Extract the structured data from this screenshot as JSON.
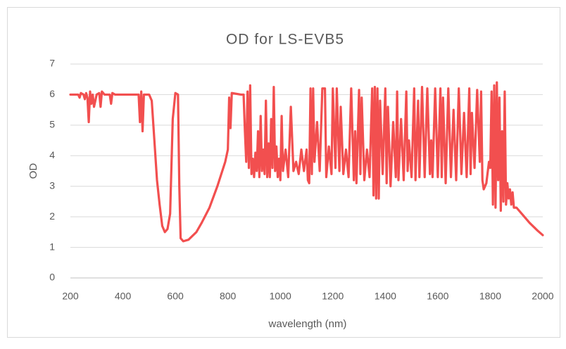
{
  "chart_data": {
    "type": "line",
    "title": "OD for LS-EVB5",
    "x_label": "wavelength (nm)",
    "y_label": "OD",
    "color": "#f24f4f",
    "grid": true,
    "xlim": [
      200,
      2000
    ],
    "xticks": [
      200,
      400,
      600,
      800,
      1000,
      1200,
      1400,
      1600,
      1800,
      2000
    ],
    "ylim": [
      0,
      7
    ],
    "yticks": [
      0,
      1,
      2,
      3,
      4,
      5,
      6,
      7
    ],
    "x": [
      200,
      230,
      235,
      240,
      250,
      255,
      260,
      265,
      270,
      275,
      280,
      285,
      290,
      300,
      310,
      315,
      320,
      330,
      350,
      355,
      360,
      370,
      460,
      465,
      470,
      475,
      480,
      500,
      510,
      520,
      530,
      540,
      550,
      560,
      570,
      580,
      590,
      600,
      610,
      615,
      620,
      630,
      650,
      680,
      700,
      730,
      760,
      790,
      800,
      805,
      810,
      815,
      850,
      860,
      865,
      870,
      875,
      880,
      885,
      890,
      895,
      900,
      905,
      910,
      915,
      920,
      925,
      930,
      935,
      940,
      945,
      950,
      955,
      960,
      965,
      970,
      975,
      980,
      985,
      990,
      995,
      1000,
      1005,
      1010,
      1020,
      1030,
      1040,
      1050,
      1060,
      1070,
      1080,
      1090,
      1100,
      1105,
      1110,
      1115,
      1120,
      1125,
      1130,
      1140,
      1150,
      1160,
      1170,
      1175,
      1185,
      1195,
      1200,
      1210,
      1215,
      1225,
      1230,
      1240,
      1250,
      1260,
      1270,
      1280,
      1285,
      1290,
      1300,
      1305,
      1310,
      1320,
      1330,
      1340,
      1350,
      1355,
      1360,
      1365,
      1370,
      1375,
      1380,
      1390,
      1400,
      1405,
      1410,
      1420,
      1430,
      1440,
      1445,
      1450,
      1460,
      1470,
      1480,
      1485,
      1490,
      1500,
      1510,
      1515,
      1525,
      1530,
      1540,
      1550,
      1560,
      1570,
      1575,
      1580,
      1590,
      1600,
      1610,
      1615,
      1620,
      1630,
      1640,
      1650,
      1660,
      1670,
      1680,
      1690,
      1700,
      1710,
      1720,
      1725,
      1730,
      1740,
      1750,
      1760,
      1765,
      1770,
      1775,
      1785,
      1795,
      1800,
      1805,
      1810,
      1815,
      1820,
      1825,
      1830,
      1835,
      1840,
      1845,
      1850,
      1855,
      1860,
      1865,
      1870,
      1875,
      1880,
      1885,
      1890,
      1900,
      1920,
      1950,
      1980,
      2000
    ],
    "values": [
      6,
      6,
      5.9,
      6.05,
      6,
      5.85,
      6.05,
      5.9,
      5.1,
      6.1,
      5.7,
      6,
      5.6,
      6,
      6.05,
      5.6,
      6.1,
      6,
      6,
      5.7,
      6.05,
      6,
      6,
      5.1,
      6.1,
      4.8,
      6,
      6,
      5.8,
      4.5,
      3.2,
      2.4,
      1.7,
      1.5,
      1.6,
      2.1,
      5.2,
      6.05,
      6,
      3,
      1.3,
      1.2,
      1.25,
      1.5,
      1.8,
      2.3,
      3,
      3.8,
      4.2,
      5.9,
      4.9,
      6.05,
      6,
      6,
      4.8,
      3.8,
      6.1,
      3.6,
      6.3,
      3.4,
      3.9,
      3.3,
      4.1,
      3.5,
      4.8,
      3.3,
      5.3,
      3.5,
      4.2,
      3.4,
      5.8,
      3.3,
      4.4,
      3.3,
      5.2,
      3.6,
      6.25,
      3.5,
      4.3,
      3.3,
      3.9,
      3.2,
      5.3,
      3.5,
      4.2,
      3.3,
      5.6,
      3.5,
      3.8,
      3.4,
      4.2,
      3.5,
      4.2,
      3.2,
      3.1,
      6.2,
      3.4,
      6.2,
      3.8,
      5.1,
      3.5,
      6.2,
      6.2,
      3.3,
      4.3,
      3.4,
      6.2,
      3.6,
      6.2,
      3.5,
      5.6,
      3.4,
      4.2,
      3.3,
      6.2,
      3.2,
      4.8,
      3.1,
      6.15,
      3.4,
      5.9,
      3.2,
      4.2,
      3.3,
      6.2,
      2.7,
      6.25,
      2.6,
      6.2,
      2.6,
      5.8,
      3.4,
      6.2,
      3.1,
      5.6,
      3,
      5.1,
      3.3,
      6.1,
      3.2,
      5.2,
      3.2,
      6.1,
      3.5,
      4.5,
      3.3,
      6.2,
      3.2,
      5.8,
      3.3,
      6.25,
      3.3,
      6.2,
      3.4,
      4.5,
      3.3,
      6.2,
      3.3,
      6.2,
      3.3,
      5.9,
      3.1,
      6.2,
      3.3,
      5.5,
      3.2,
      6.2,
      3.4,
      5.4,
      3.3,
      6.2,
      3.4,
      5.4,
      3.6,
      6.15,
      3.8,
      6.1,
      3.2,
      2.9,
      3.1,
      3.8,
      3.6,
      6.1,
      2.4,
      6.3,
      2.3,
      6.4,
      3.2,
      5.9,
      2.2,
      4.8,
      2.5,
      6.1,
      2.4,
      3.1,
      2.6,
      2.9,
      2.4,
      2.8,
      2.3,
      2.3,
      2.1,
      1.8,
      1.55,
      1.4
    ]
  }
}
